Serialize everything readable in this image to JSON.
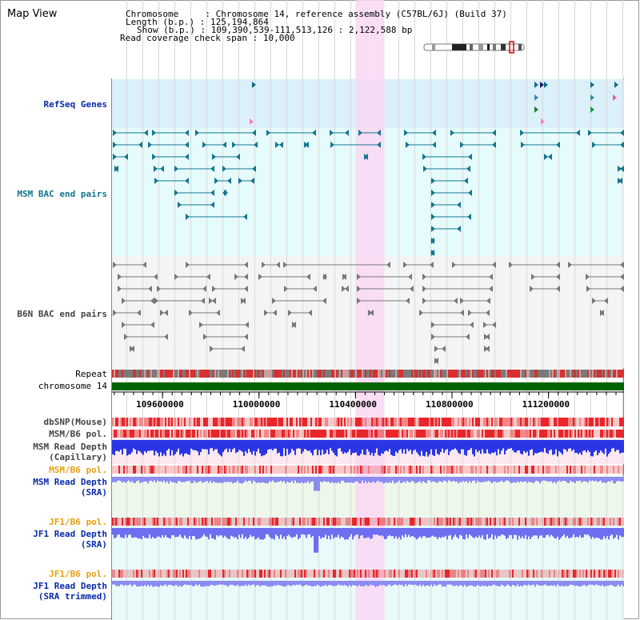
{
  "title": "Map View",
  "info": {
    "chromosome_key": "Chromosome",
    "chromosome_value": "Chromosome 14, reference assembly (C57BL/6J) (Build 37)",
    "length_key": "Length (b.p.)",
    "length_value": "125,194,864",
    "show_key": "Show (b.p.)",
    "show_value": "109,390,539-111,513,126 : 2,122,588 bp",
    "span_key": "Read coverage check span",
    "span_value": "10,000"
  },
  "tracks": {
    "refseq": "RefSeq Genes",
    "msm_bac": "MSM BAC end pairs",
    "b6n_bac": "B6N BAC end pairs",
    "repeat": "Repeat",
    "chromosome": "chromosome 14",
    "dbsnp": "dbSNP(Mouse)",
    "msm_b6_pol_1": "MSM/B6 pol.",
    "msm_depth_cap_1": "MSM Read Depth",
    "msm_depth_cap_2": "(Capillary)",
    "msm_b6_pol_2": "MSM/B6 pol.",
    "msm_depth_sra_1": "MSM Read Depth",
    "msm_depth_sra_2": "(SRA)",
    "jf1_b6_pol_1": "JF1/B6 pol.",
    "jf1_depth_sra_1": "JF1 Read Depth",
    "jf1_depth_sra_2": "(SRA)",
    "jf1_b6_pol_2": "JF1/B6 pol.",
    "jf1_depth_trim_1": "JF1 Read Depth",
    "jf1_depth_trim_2": "(SRA trimmed)"
  },
  "axis": {
    "ticks": [
      "109600000",
      "110000000",
      "110400000",
      "110800000",
      "111200000"
    ],
    "tick_values": [
      109600000,
      110000000,
      110400000,
      110800000,
      111200000
    ],
    "range": [
      109390539,
      111513126
    ]
  },
  "highlight_region": [
    110400000,
    110520000
  ],
  "colors": {
    "refseq_bg": "#dcf0fa",
    "msm_bg": "#e6fbfb",
    "b6n_bg": "#f4f4f6",
    "highlight": "#f9d8f4",
    "teal": "#14758f",
    "grey_feature": "#777777",
    "chromosome_bar": "#006400",
    "snp_red": "#e8262a",
    "depth_blue": "#2a36e6",
    "sra_blue": "#8c8cf0"
  }
}
